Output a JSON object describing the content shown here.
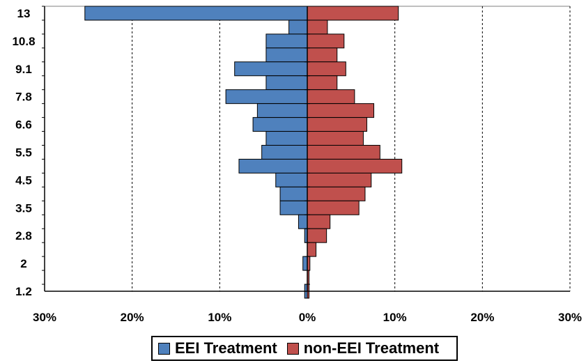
{
  "chart_data": {
    "type": "bar",
    "orientation": "horizontal-butterfly",
    "y_tick_labels": [
      "13",
      "10.8",
      "9.1",
      "7.8",
      "6.6",
      "5.5",
      "4.5",
      "3.5",
      "2.8",
      "2",
      "1.2"
    ],
    "x_tick_labels": [
      "30%",
      "20%",
      "10%",
      "0%",
      "10%",
      "20%",
      "30%"
    ],
    "xlim": [
      -30,
      30
    ],
    "grid": "vertical dashed",
    "legend_position": "bottom",
    "bin_count": 21,
    "series": [
      {
        "name": "EEI Treatment",
        "side": "left",
        "color": "#4f81bd",
        "values": [
          25.4,
          2.1,
          4.7,
          4.7,
          8.3,
          4.7,
          9.3,
          5.7,
          6.2,
          4.7,
          5.2,
          7.8,
          3.6,
          3.1,
          3.1,
          1.0,
          0.3,
          0,
          0.5,
          0,
          0.3
        ]
      },
      {
        "name": "non-EEI Treatment",
        "side": "right",
        "color": "#c0504d",
        "values": [
          10.4,
          2.3,
          4.2,
          3.4,
          4.4,
          3.4,
          5.4,
          7.6,
          6.8,
          6.4,
          8.3,
          10.8,
          7.3,
          6.6,
          5.9,
          2.6,
          2.2,
          1.0,
          0.3,
          0.2,
          0.2
        ]
      }
    ]
  },
  "legend": {
    "items": [
      {
        "label": "EEI Treatment",
        "color": "#4f81bd"
      },
      {
        "label": "non-EEI Treatment",
        "color": "#c0504d"
      }
    ]
  }
}
